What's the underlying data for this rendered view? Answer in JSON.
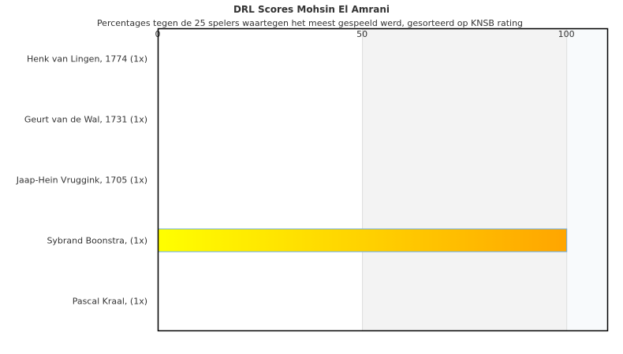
{
  "chart_data": {
    "type": "bar",
    "orientation": "horizontal",
    "title": "DRL Scores Mohsin El Amrani",
    "subtitle": "Percentages tegen de 25 spelers waartegen het meest gespeeld werd, gesorteerd op KNSB rating",
    "categories": [
      "Henk van Lingen, 1774 (1x)",
      "Geurt van de Wal, 1731 (1x)",
      "Jaap-Hein Vruggink, 1705 (1x)",
      "Sybrand Boonstra,  (1x)",
      "Pascal Kraal,  (1x)"
    ],
    "values": [
      0,
      0,
      0,
      100,
      0
    ],
    "xlim": [
      0,
      110
    ],
    "xticks": [
      "0",
      "50",
      "100"
    ],
    "xtick_values": [
      0,
      50,
      100
    ],
    "axis_position": "top",
    "bands": [
      {
        "from": 50,
        "to": 100,
        "color": "#f3f3f3"
      },
      {
        "from": 100,
        "to": 110,
        "color": "#f8fafc"
      }
    ],
    "bar_gradient": [
      "#ffff00",
      "#ffa500"
    ],
    "bar_border": "#6aaee8"
  }
}
